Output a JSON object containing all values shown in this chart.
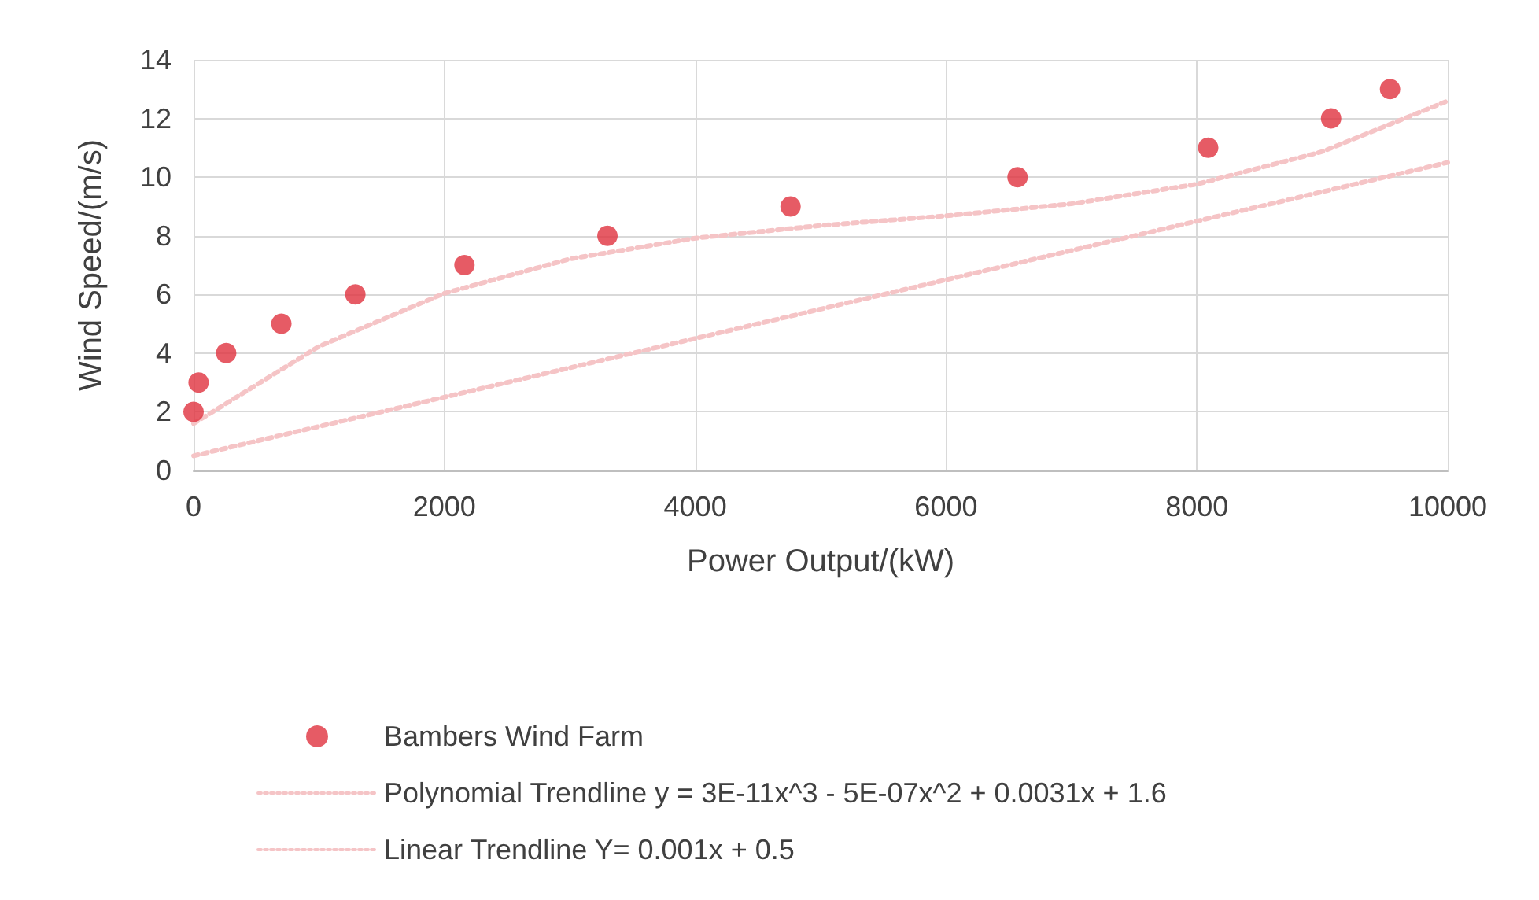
{
  "chart_data": {
    "type": "scatter",
    "xlabel": "Power Output/(kW)",
    "ylabel": "Wind Speed/(m/s)",
    "xlim": [
      0,
      10000
    ],
    "xticks": [
      0,
      2000,
      4000,
      6000,
      8000,
      10000
    ],
    "ylim": [
      0,
      14
    ],
    "yticks": [
      0,
      2,
      4,
      6,
      8,
      10,
      12,
      14
    ],
    "grid": true,
    "legend": "bottom",
    "series": [
      {
        "name": "Bambers Wind Farm",
        "color": "#e0323e",
        "marker": "circle",
        "x": [
          0,
          40,
          260,
          700,
          1290,
          2160,
          3300,
          4760,
          6570,
          8090,
          9070,
          9540
        ],
        "values": [
          2,
          3,
          4,
          5,
          6,
          7,
          8,
          9,
          10,
          11,
          12,
          13
        ]
      },
      {
        "name": "Polynomial Trendline y = 3E-11x^3 - 5E-07x^2 + 0.0031x + 1.6",
        "type": "line",
        "color": "#f5c4c6",
        "marker": "none",
        "line_style": "dotted",
        "x": [
          0,
          1000,
          2000,
          3000,
          4000,
          5000,
          6000,
          7000,
          8000,
          9000,
          10000
        ],
        "values": [
          1.6,
          4.23,
          6.04,
          7.21,
          7.92,
          8.35,
          8.68,
          9.09,
          9.76,
          10.87,
          12.6
        ]
      },
      {
        "name": "Linear Trendline Y= 0.001x + 0.5",
        "type": "line",
        "color": "#f5c4c6",
        "marker": "none",
        "line_style": "dotted",
        "x": [
          0,
          10000
        ],
        "values": [
          0.5,
          10.5
        ]
      }
    ]
  }
}
